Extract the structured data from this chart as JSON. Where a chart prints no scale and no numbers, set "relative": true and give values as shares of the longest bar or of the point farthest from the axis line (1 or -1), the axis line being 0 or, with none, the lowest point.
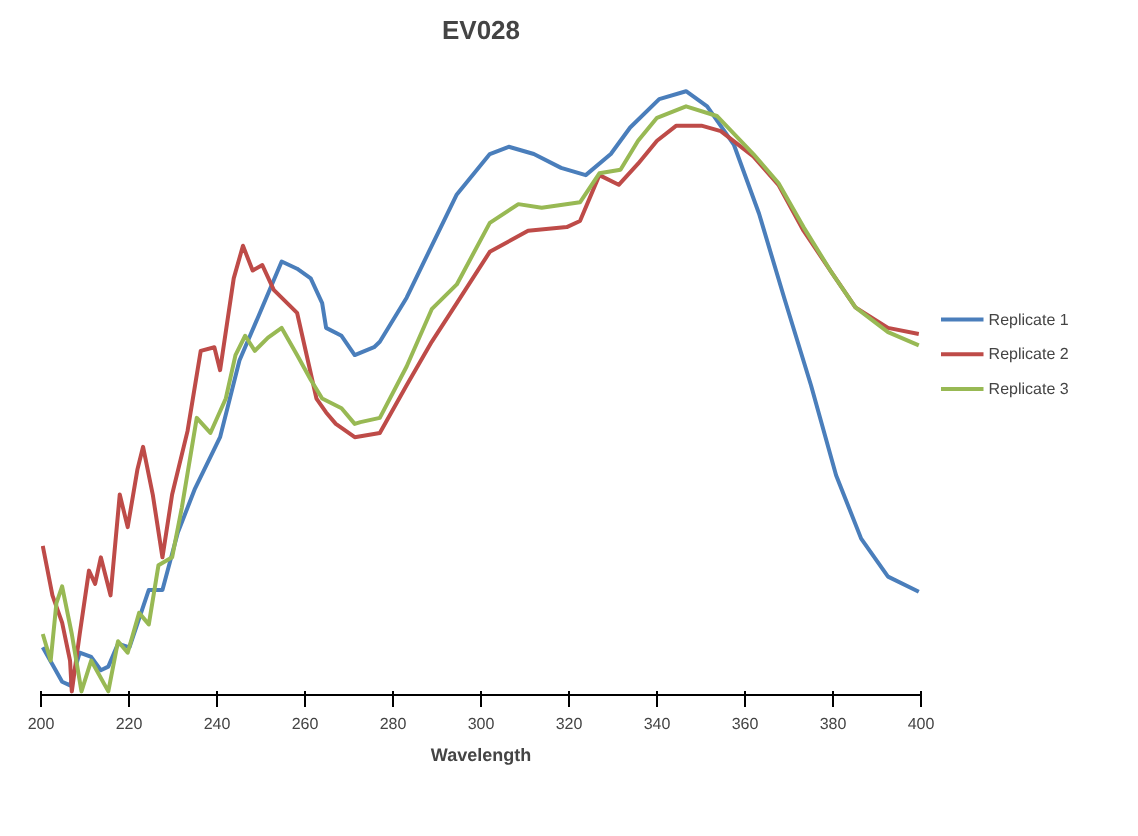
{
  "chart_data": {
    "type": "line",
    "title": "EV028",
    "xlabel": "Wavelength",
    "relative": true,
    "xlim": [
      200,
      400
    ],
    "xticks": [
      200,
      220,
      240,
      260,
      280,
      300,
      320,
      340,
      360,
      380,
      400
    ],
    "grid": false,
    "legend": "right",
    "marker": "none",
    "line_style": "solid",
    "series": [
      {
        "name": "Replicate 1",
        "color": "#4a7ebb",
        "x": [
          200.4,
          204.8,
          206.6,
          208.8,
          211.4,
          213.6,
          215.3,
          217.5,
          220.1,
          224.5,
          227.6,
          231.1,
          235.0,
          240.7,
          245.1,
          249.4,
          254.7,
          258.2,
          261.3,
          263.9,
          264.8,
          268.3,
          271.3,
          275.7,
          277.0,
          283.1,
          288.8,
          294.5,
          302.0,
          306.3,
          312.0,
          318.2,
          323.8,
          329.5,
          333.9,
          340.5,
          346.6,
          351.4,
          357.5,
          363.2,
          368.9,
          375.0,
          380.7,
          386.4,
          392.5,
          399.5
        ],
        "values": [
          0.079,
          0.022,
          0.016,
          0.07,
          0.063,
          0.041,
          0.047,
          0.085,
          0.079,
          0.174,
          0.174,
          0.269,
          0.342,
          0.427,
          0.554,
          0.627,
          0.718,
          0.706,
          0.69,
          0.649,
          0.608,
          0.595,
          0.563,
          0.576,
          0.585,
          0.658,
          0.744,
          0.829,
          0.896,
          0.908,
          0.896,
          0.873,
          0.861,
          0.896,
          0.94,
          0.987,
          1.0,
          0.975,
          0.911,
          0.797,
          0.658,
          0.513,
          0.364,
          0.259,
          0.196,
          0.171
        ]
      },
      {
        "name": "Replicate 2",
        "color": "#be4b48",
        "x": [
          200.4,
          202.6,
          204.8,
          206.6,
          207.0,
          208.8,
          210.9,
          212.3,
          213.6,
          215.8,
          217.9,
          219.7,
          221.9,
          223.2,
          225.4,
          227.6,
          229.8,
          233.3,
          236.3,
          239.4,
          240.7,
          243.8,
          245.9,
          248.1,
          250.3,
          252.9,
          258.2,
          262.6,
          264.8,
          267.0,
          271.3,
          277.0,
          283.1,
          288.8,
          294.5,
          302.0,
          310.7,
          319.5,
          322.5,
          326.9,
          331.3,
          335.7,
          340.0,
          344.4,
          350.1,
          354.5,
          361.9,
          367.6,
          373.3,
          379.4,
          385.1,
          392.5,
          399.5
        ],
        "values": [
          0.247,
          0.165,
          0.12,
          0.057,
          0.006,
          0.101,
          0.206,
          0.184,
          0.228,
          0.165,
          0.332,
          0.278,
          0.373,
          0.411,
          0.332,
          0.228,
          0.332,
          0.437,
          0.57,
          0.576,
          0.538,
          0.69,
          0.744,
          0.703,
          0.712,
          0.671,
          0.633,
          0.491,
          0.468,
          0.449,
          0.427,
          0.434,
          0.513,
          0.585,
          0.649,
          0.734,
          0.769,
          0.775,
          0.785,
          0.861,
          0.845,
          0.88,
          0.918,
          0.943,
          0.943,
          0.934,
          0.892,
          0.845,
          0.769,
          0.703,
          0.642,
          0.608,
          0.598
        ]
      },
      {
        "name": "Replicate 3",
        "color": "#98b954",
        "x": [
          200.4,
          202.2,
          203.5,
          204.8,
          207.0,
          209.2,
          211.4,
          215.3,
          217.5,
          219.7,
          222.3,
          224.5,
          226.7,
          229.8,
          232.0,
          235.4,
          238.5,
          242.0,
          244.2,
          246.4,
          248.6,
          251.6,
          254.7,
          258.2,
          261.3,
          263.9,
          268.3,
          271.3,
          272.6,
          277.0,
          283.1,
          288.8,
          294.5,
          302.0,
          308.5,
          313.8,
          322.5,
          326.9,
          331.7,
          335.7,
          340.0,
          346.6,
          353.6,
          361.9,
          367.6,
          373.3,
          379.4,
          385.1,
          392.5,
          399.5
        ],
        "values": [
          0.101,
          0.057,
          0.152,
          0.18,
          0.101,
          0.006,
          0.057,
          0.006,
          0.089,
          0.07,
          0.136,
          0.117,
          0.215,
          0.228,
          0.31,
          0.459,
          0.434,
          0.491,
          0.563,
          0.595,
          0.57,
          0.592,
          0.608,
          0.563,
          0.522,
          0.491,
          0.475,
          0.449,
          0.452,
          0.459,
          0.544,
          0.639,
          0.68,
          0.782,
          0.813,
          0.807,
          0.816,
          0.864,
          0.87,
          0.918,
          0.956,
          0.975,
          0.959,
          0.896,
          0.848,
          0.775,
          0.703,
          0.642,
          0.601,
          0.579
        ]
      }
    ]
  }
}
